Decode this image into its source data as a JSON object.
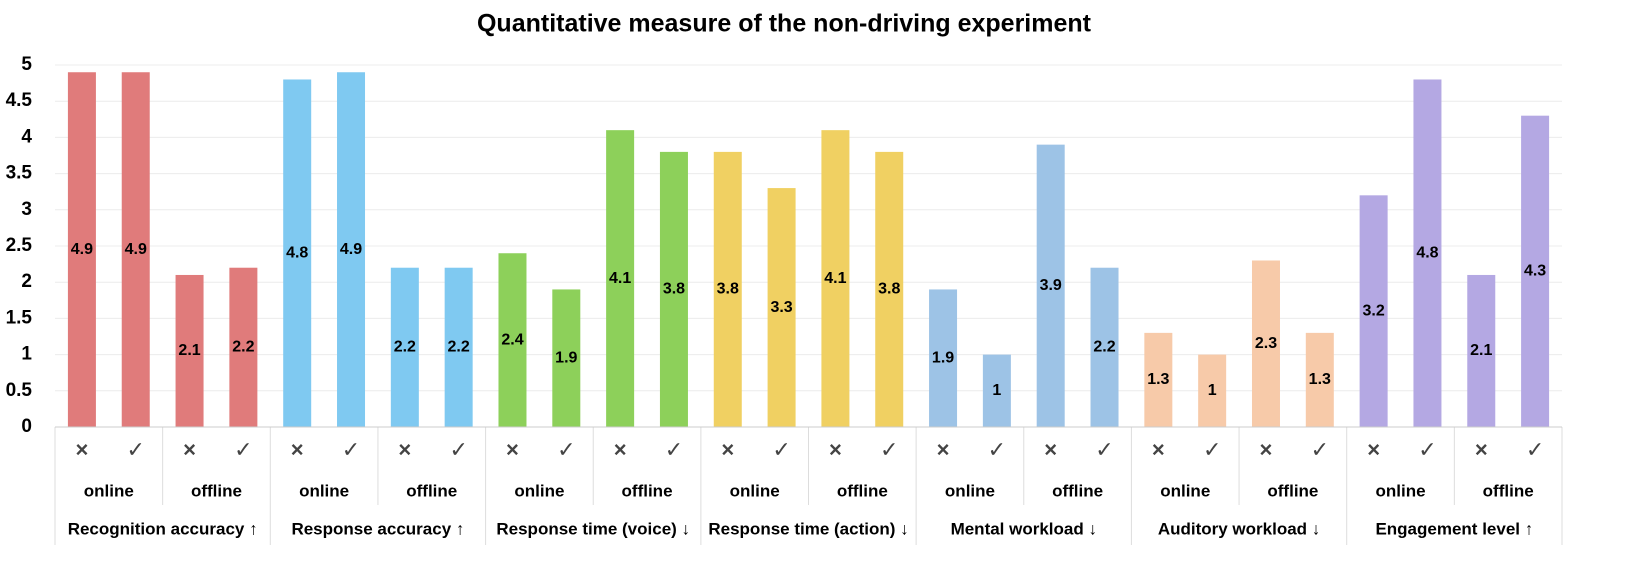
{
  "chart_data": {
    "type": "bar",
    "title": "Quantitative measure of the non-driving experiment",
    "ylim": [
      0,
      5
    ],
    "yticks": [
      0,
      0.5,
      1,
      1.5,
      2,
      2.5,
      3,
      3.5,
      4,
      4.5,
      5
    ],
    "grid": true,
    "groups": [
      {
        "name": "Recognition accuracy ↑",
        "color": "#e07b7b",
        "subgroups": [
          {
            "name": "online",
            "categories": [
              "×",
              "✓"
            ],
            "values": [
              4.9,
              4.9
            ]
          },
          {
            "name": "offline",
            "categories": [
              "×",
              "✓"
            ],
            "values": [
              2.1,
              2.2
            ]
          }
        ]
      },
      {
        "name": "Response accuracy ↑",
        "color": "#7fc9f1",
        "subgroups": [
          {
            "name": "online",
            "categories": [
              "×",
              "✓"
            ],
            "values": [
              4.8,
              4.9
            ]
          },
          {
            "name": "offline",
            "categories": [
              "×",
              "✓"
            ],
            "values": [
              2.2,
              2.2
            ]
          }
        ]
      },
      {
        "name": "Response time (voice) ↓",
        "color": "#8dd05a",
        "subgroups": [
          {
            "name": "online",
            "categories": [
              "×",
              "✓"
            ],
            "values": [
              2.4,
              1.9
            ]
          },
          {
            "name": "offline",
            "categories": [
              "×",
              "✓"
            ],
            "values": [
              4.1,
              3.8
            ]
          }
        ]
      },
      {
        "name": "Response time (action) ↓",
        "color": "#f0d062",
        "subgroups": [
          {
            "name": "online",
            "categories": [
              "×",
              "✓"
            ],
            "values": [
              3.8,
              3.3
            ]
          },
          {
            "name": "offline",
            "categories": [
              "×",
              "✓"
            ],
            "values": [
              4.1,
              3.8
            ]
          }
        ]
      },
      {
        "name": "Mental workload ↓",
        "color": "#9dc3e6",
        "subgroups": [
          {
            "name": "online",
            "categories": [
              "×",
              "✓"
            ],
            "values": [
              1.9,
              1
            ]
          },
          {
            "name": "offline",
            "categories": [
              "×",
              "✓"
            ],
            "values": [
              3.9,
              2.2
            ]
          }
        ]
      },
      {
        "name": "Auditory workload ↓",
        "color": "#f7caa9",
        "subgroups": [
          {
            "name": "online",
            "categories": [
              "×",
              "✓"
            ],
            "values": [
              1.3,
              1
            ]
          },
          {
            "name": "offline",
            "categories": [
              "×",
              "✓"
            ],
            "values": [
              2.3,
              1.3
            ]
          }
        ]
      },
      {
        "name": "Engagement level ↑",
        "color": "#b4a8e3",
        "subgroups": [
          {
            "name": "online",
            "categories": [
              "×",
              "✓"
            ],
            "values": [
              3.2,
              4.8
            ]
          },
          {
            "name": "offline",
            "categories": [
              "×",
              "✓"
            ],
            "values": [
              2.1,
              4.3
            ]
          }
        ]
      }
    ]
  }
}
